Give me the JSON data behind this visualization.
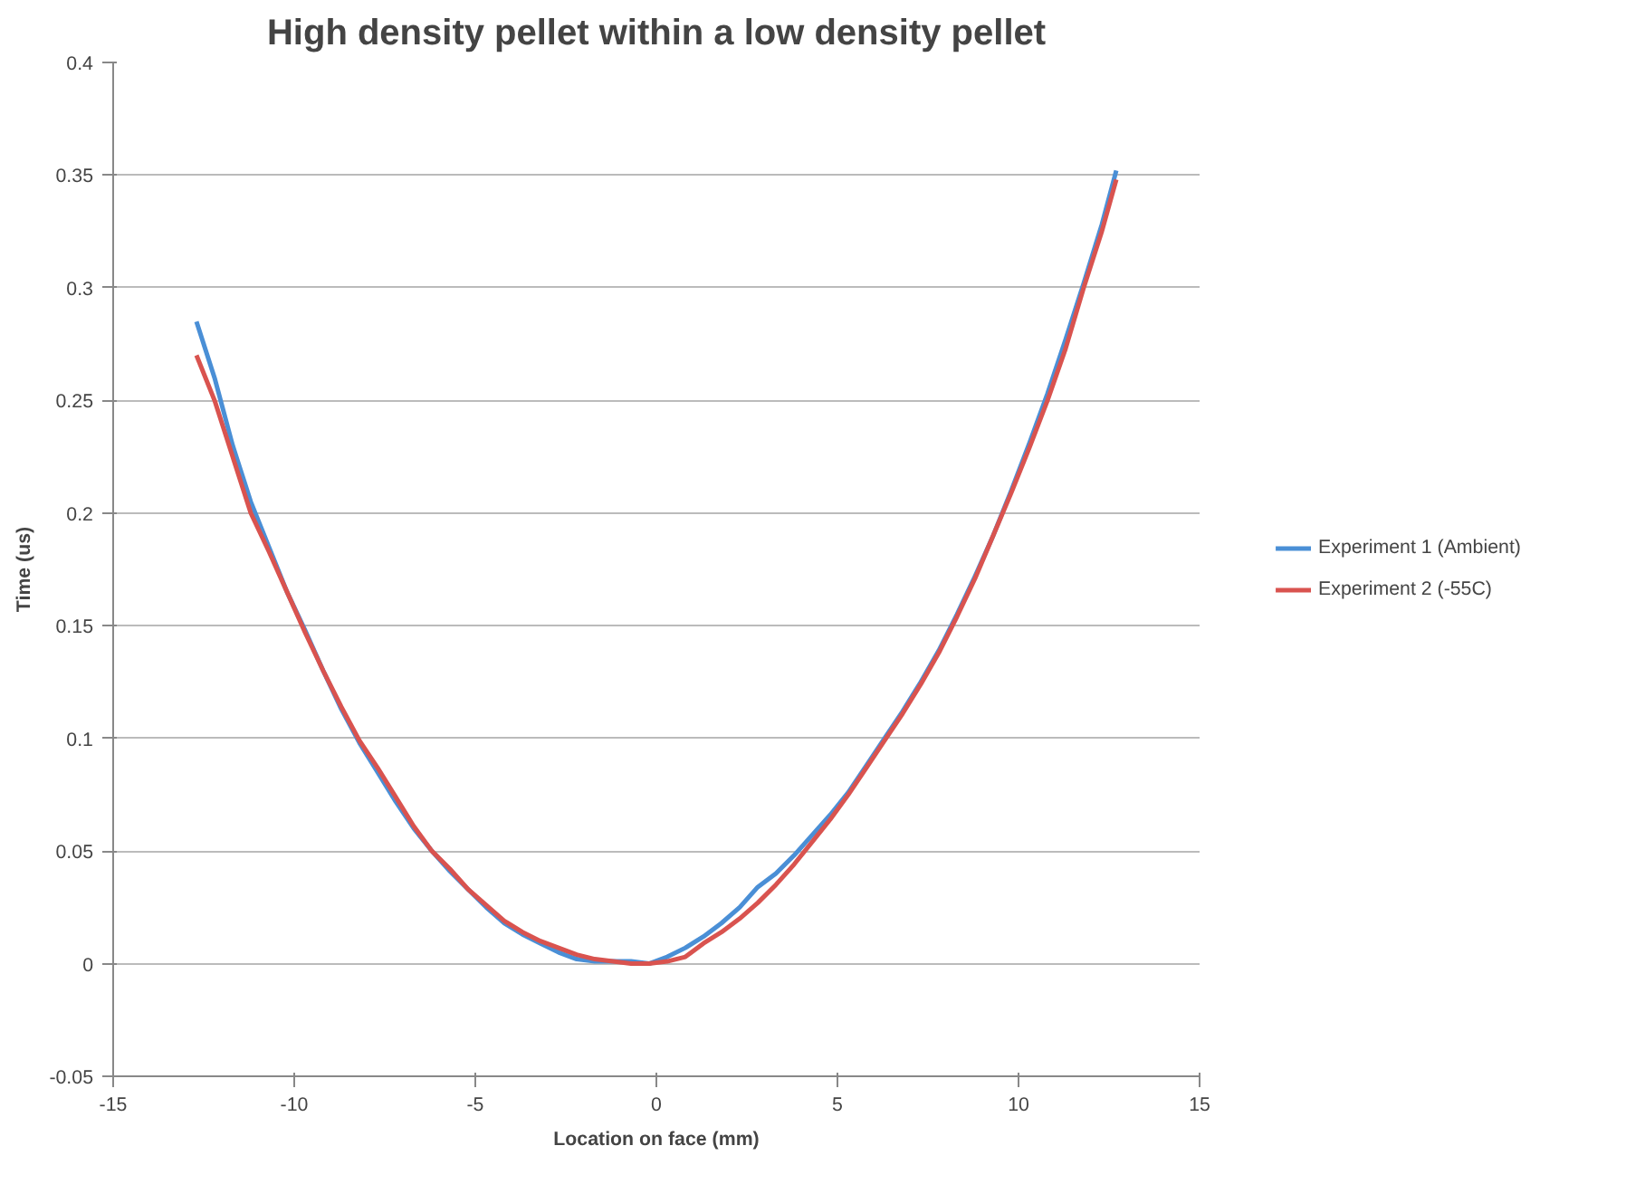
{
  "chart_data": {
    "type": "line",
    "title": "High density pellet within a low density pellet",
    "xlabel": "Location on face (mm)",
    "ylabel": "Time (us)",
    "xlim": [
      -15,
      15
    ],
    "ylim": [
      -0.05,
      0.4
    ],
    "xticks": [
      -15,
      -10,
      -5,
      0,
      5,
      10,
      15
    ],
    "yticks": [
      -0.05,
      0,
      0.05,
      0.1,
      0.15,
      0.2,
      0.25,
      0.3,
      0.35,
      0.4
    ],
    "grid": "y",
    "legend": "right",
    "marker": "none",
    "line_style": "solid",
    "series": [
      {
        "name": "Experiment 1 (Ambient)",
        "color": "#4a8fd6",
        "x": [
          -12.7,
          -12.2,
          -11.7,
          -11.2,
          -10.7,
          -10.2,
          -9.7,
          -9.2,
          -8.7,
          -8.2,
          -7.7,
          -7.2,
          -6.7,
          -6.2,
          -5.7,
          -5.2,
          -4.7,
          -4.2,
          -3.7,
          -3.2,
          -2.7,
          -2.2,
          -1.7,
          -1.2,
          -0.7,
          -0.2,
          0.3,
          0.8,
          1.3,
          1.8,
          2.3,
          2.8,
          3.3,
          3.8,
          4.3,
          4.8,
          5.3,
          5.8,
          6.3,
          6.8,
          7.3,
          7.8,
          8.3,
          8.8,
          9.3,
          9.8,
          10.3,
          10.8,
          11.3,
          11.8,
          12.3,
          12.7
        ],
        "values": [
          0.285,
          0.26,
          0.23,
          0.205,
          0.185,
          0.165,
          0.148,
          0.13,
          0.113,
          0.098,
          0.085,
          0.072,
          0.06,
          0.05,
          0.041,
          0.033,
          0.025,
          0.018,
          0.013,
          0.009,
          0.005,
          0.002,
          0.001,
          0.001,
          0.001,
          0.0,
          0.003,
          0.007,
          0.012,
          0.018,
          0.025,
          0.034,
          0.04,
          0.048,
          0.057,
          0.066,
          0.076,
          0.088,
          0.1,
          0.112,
          0.125,
          0.139,
          0.155,
          0.172,
          0.19,
          0.21,
          0.231,
          0.253,
          0.277,
          0.302,
          0.328,
          0.352
        ]
      },
      {
        "name": "Experiment 2 (-55C)",
        "color": "#d9534f",
        "x": [
          -12.7,
          -12.2,
          -11.7,
          -11.2,
          -10.7,
          -10.2,
          -9.7,
          -9.2,
          -8.7,
          -8.2,
          -7.7,
          -7.2,
          -6.7,
          -6.2,
          -5.7,
          -5.2,
          -4.7,
          -4.2,
          -3.7,
          -3.2,
          -2.7,
          -2.2,
          -1.7,
          -1.2,
          -0.7,
          -0.2,
          0.3,
          0.8,
          1.3,
          1.8,
          2.3,
          2.8,
          3.3,
          3.8,
          4.3,
          4.8,
          5.3,
          5.8,
          6.3,
          6.8,
          7.3,
          7.8,
          8.3,
          8.8,
          9.3,
          9.8,
          10.3,
          10.8,
          11.3,
          11.8,
          12.3,
          12.7
        ],
        "values": [
          0.27,
          0.25,
          0.225,
          0.2,
          0.183,
          0.165,
          0.147,
          0.13,
          0.114,
          0.099,
          0.087,
          0.074,
          0.061,
          0.05,
          0.042,
          0.033,
          0.026,
          0.019,
          0.014,
          0.01,
          0.007,
          0.004,
          0.002,
          0.001,
          0.0,
          0.0,
          0.001,
          0.003,
          0.009,
          0.014,
          0.02,
          0.027,
          0.035,
          0.044,
          0.054,
          0.064,
          0.075,
          0.087,
          0.099,
          0.111,
          0.124,
          0.138,
          0.154,
          0.171,
          0.19,
          0.209,
          0.229,
          0.25,
          0.273,
          0.3,
          0.325,
          0.348
        ]
      }
    ]
  }
}
